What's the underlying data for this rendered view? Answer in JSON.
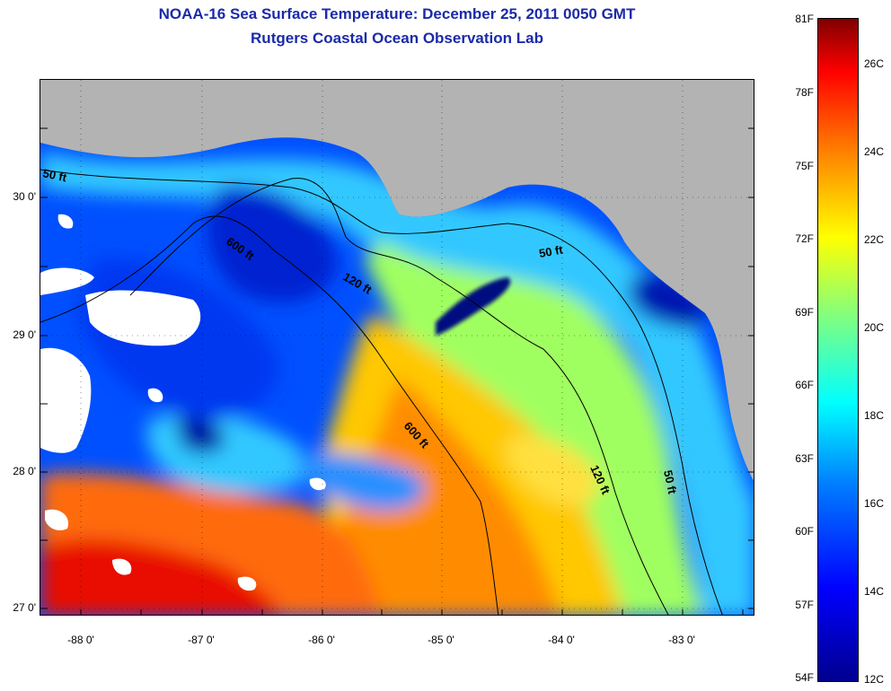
{
  "title": {
    "line1": "NOAA-16 Sea Surface Temperature:  December 25, 2011 0050 GMT",
    "line2": "Rutgers Coastal Ocean Observation Lab"
  },
  "map": {
    "lat_labels": [
      "30 0'",
      "29 0'",
      "28 0'",
      "27 0'"
    ],
    "lon_labels": [
      "-88 0'",
      "-87 0'",
      "-86 0'",
      "-85 0'",
      "-84 0'",
      "-83 0'"
    ],
    "contour_labels": [
      "50 ft",
      "600 ft",
      "120 ft",
      "50 ft",
      "600 ft",
      "120 ft",
      "50 ft"
    ],
    "lon_range": [
      -88.3,
      -82.5
    ],
    "lat_range": [
      26.95,
      30.85
    ],
    "land_color": "#b3b3b3",
    "cloud_color": "#ffffff"
  },
  "colorbar": {
    "fahrenheit_labels": [
      "81F",
      "78F",
      "75F",
      "72F",
      "69F",
      "66F",
      "63F",
      "60F",
      "57F",
      "54F"
    ],
    "celsius_labels": [
      "26C",
      "24C",
      "22C",
      "20C",
      "18C",
      "16C",
      "14C",
      "12C"
    ],
    "colors": [
      "#00008f",
      "#0000ff",
      "#0080ff",
      "#00ffff",
      "#80ff80",
      "#ffff00",
      "#ff8000",
      "#ff0000",
      "#800000"
    ]
  }
}
